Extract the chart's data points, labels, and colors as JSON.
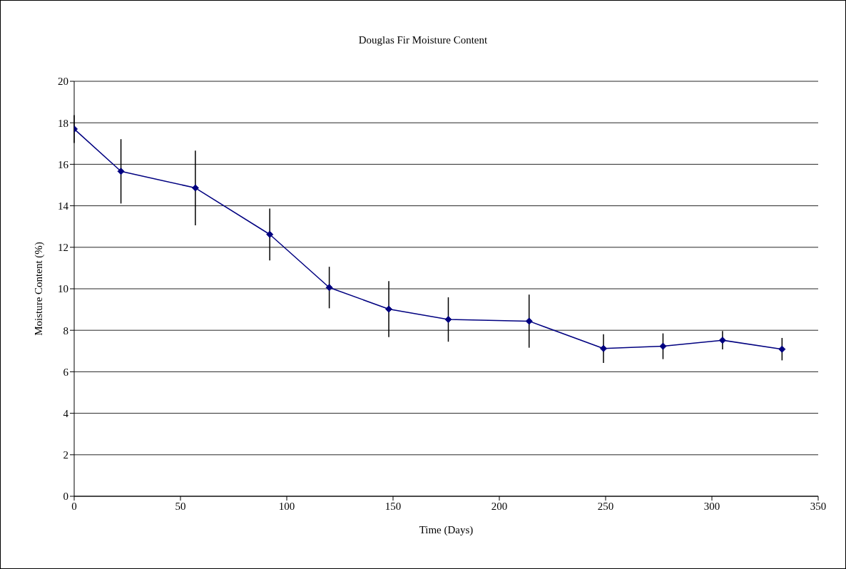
{
  "chart_data": {
    "type": "line",
    "title": "Douglas Fir Moisture Content",
    "xlabel": "Time (Days)",
    "ylabel": "Moisture Content (%)",
    "x": [
      0,
      22,
      57,
      92,
      120,
      148,
      176,
      214,
      249,
      277,
      305,
      333
    ],
    "series": [
      {
        "color": "#000080",
        "values": [
          17.7,
          15.66,
          14.86,
          12.62,
          10.06,
          9.02,
          8.52,
          8.44,
          7.12,
          7.23,
          7.52,
          7.09
        ],
        "errors": [
          0.67,
          1.55,
          1.8,
          1.25,
          1.0,
          1.35,
          1.07,
          1.28,
          0.69,
          0.62,
          0.44,
          0.54
        ]
      }
    ],
    "xlim": [
      0,
      350
    ],
    "xticks": [
      0,
      50,
      100,
      150,
      200,
      250,
      300,
      350
    ],
    "ylim": [
      0,
      20
    ],
    "yticks": [
      0,
      2,
      4,
      6,
      8,
      10,
      12,
      14,
      16,
      18,
      20
    ],
    "grid": "y",
    "legend": false,
    "marker": "diamond",
    "line_style": "solid"
  }
}
